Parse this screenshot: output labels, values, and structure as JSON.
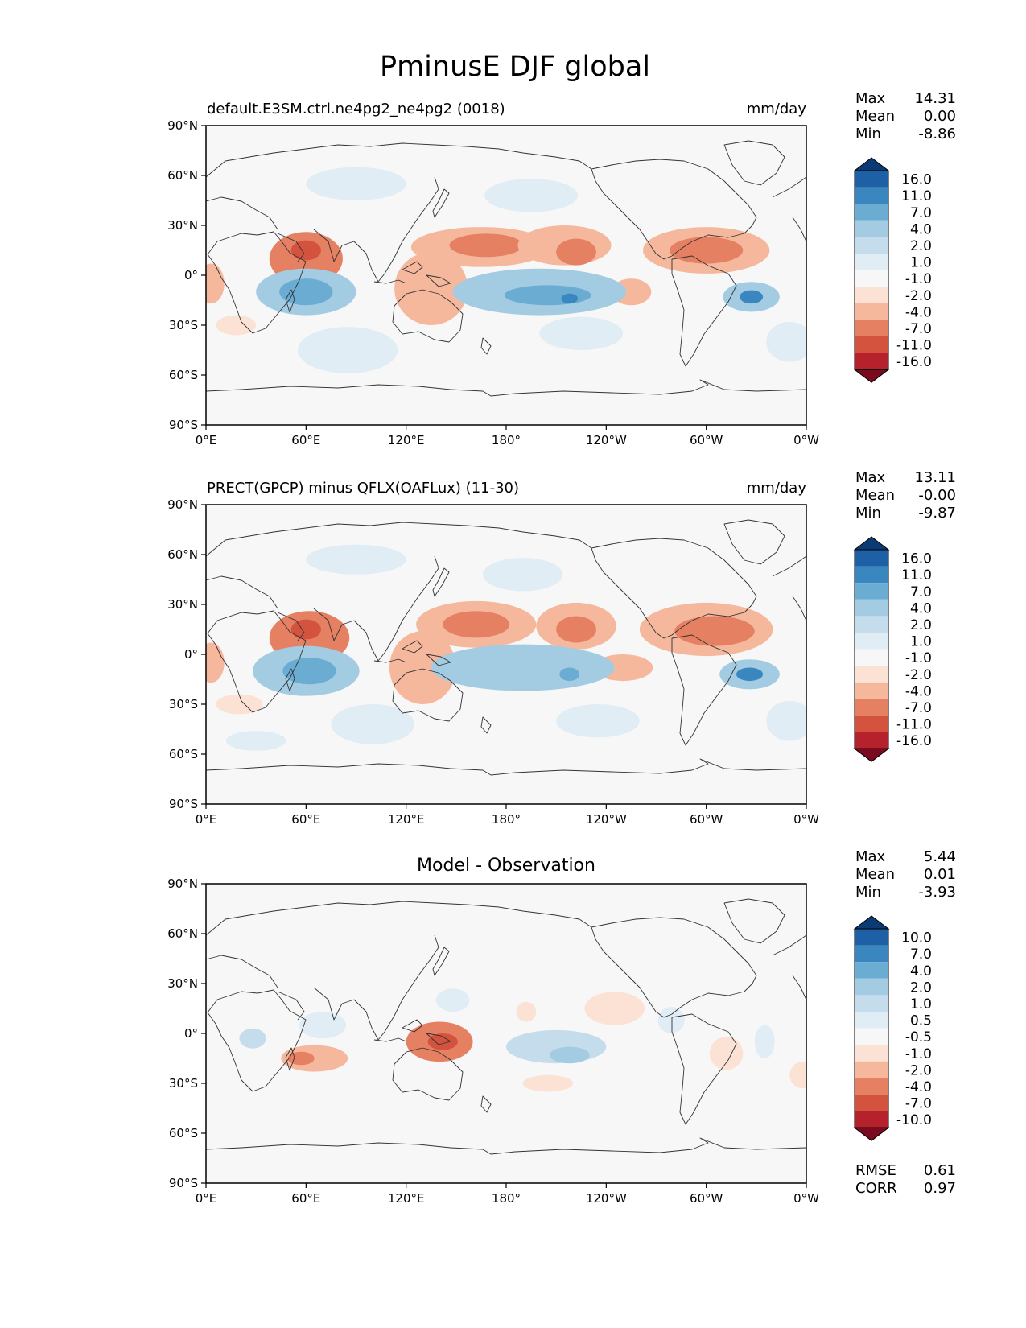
{
  "figure": {
    "title": "PminusE DJF global"
  },
  "colors": {
    "land_line": "#333333",
    "ocean_bg": "#f7f7f7",
    "blue_ramp": [
      "#f7f7f7",
      "#e0edf5",
      "#c4dceb",
      "#a3cce3",
      "#6aacd2",
      "#3a87bf",
      "#1e60a6",
      "#0b3b73"
    ],
    "red_ramp": [
      "#f7f7f7",
      "#fbe2d4",
      "#f6b89d",
      "#e68063",
      "#d3533f",
      "#b6222c",
      "#7a0a20"
    ]
  },
  "chart_data": [
    {
      "type": "heatmap",
      "name": "test",
      "title_left": "default.E3SM.ctrl.ne4pg2_ne4pg2 (0018)",
      "title_right": "mm/day",
      "stats": [
        {
          "label": "Max",
          "value": "14.31"
        },
        {
          "label": "Mean",
          "value": "0.00"
        },
        {
          "label": "Min",
          "value": "-8.86"
        }
      ],
      "colorbar": {
        "levels": [
          "16.0",
          "11.0",
          "7.0",
          "4.0",
          "2.0",
          "1.0",
          "-1.0",
          "-2.0",
          "-4.0",
          "-7.0",
          "-11.0",
          "-16.0"
        ]
      },
      "xticks": [
        "0°E",
        "60°E",
        "120°E",
        "180°",
        "120°W",
        "60°W",
        "0°W"
      ],
      "yticks": [
        "90°N",
        "60°N",
        "30°N",
        "0°",
        "30°S",
        "60°S",
        "90°S"
      ],
      "xlim": [
        0,
        360
      ],
      "ylim": [
        -90,
        90
      ],
      "blobs": [
        {
          "lon": 60,
          "lat": 10,
          "rx": 22,
          "ry": 16,
          "v": -4
        },
        {
          "lon": 60,
          "lat": 15,
          "rx": 9,
          "ry": 6,
          "v": -7
        },
        {
          "lon": 165,
          "lat": 17,
          "rx": 42,
          "ry": 12,
          "v": -2
        },
        {
          "lon": 168,
          "lat": 18,
          "rx": 22,
          "ry": 7,
          "v": -4
        },
        {
          "lon": 215,
          "lat": 18,
          "rx": 28,
          "ry": 12,
          "v": -2
        },
        {
          "lon": 222,
          "lat": 14,
          "rx": 12,
          "ry": 8,
          "v": -4
        },
        {
          "lon": 300,
          "lat": 15,
          "rx": 38,
          "ry": 14,
          "v": -2
        },
        {
          "lon": 300,
          "lat": 15,
          "rx": 22,
          "ry": 8,
          "v": -4
        },
        {
          "lon": 135,
          "lat": -8,
          "rx": 22,
          "ry": 22,
          "v": -2
        },
        {
          "lon": 255,
          "lat": -10,
          "rx": 12,
          "ry": 8,
          "v": -2
        },
        {
          "lon": 3,
          "lat": -5,
          "rx": 8,
          "ry": 12,
          "v": -2
        },
        {
          "lon": 18,
          "lat": -30,
          "rx": 12,
          "ry": 6,
          "v": -1
        },
        {
          "lon": 60,
          "lat": -10,
          "rx": 30,
          "ry": 14,
          "v": 4
        },
        {
          "lon": 60,
          "lat": -10,
          "rx": 16,
          "ry": 8,
          "v": 7
        },
        {
          "lon": 200,
          "lat": -10,
          "rx": 52,
          "ry": 14,
          "v": 4
        },
        {
          "lon": 205,
          "lat": -12,
          "rx": 26,
          "ry": 6,
          "v": 7
        },
        {
          "lon": 218,
          "lat": -14,
          "rx": 5,
          "ry": 3,
          "v": 11
        },
        {
          "lon": 327,
          "lat": -13,
          "rx": 17,
          "ry": 9,
          "v": 4
        },
        {
          "lon": 327,
          "lat": -13,
          "rx": 7,
          "ry": 4,
          "v": 11
        },
        {
          "lon": 90,
          "lat": 55,
          "rx": 30,
          "ry": 10,
          "v": 1
        },
        {
          "lon": 195,
          "lat": 48,
          "rx": 28,
          "ry": 10,
          "v": 1
        },
        {
          "lon": 85,
          "lat": -45,
          "rx": 30,
          "ry": 14,
          "v": 1
        },
        {
          "lon": 225,
          "lat": -35,
          "rx": 25,
          "ry": 10,
          "v": 1
        },
        {
          "lon": 350,
          "lat": -40,
          "rx": 14,
          "ry": 12,
          "v": 1
        }
      ]
    },
    {
      "type": "heatmap",
      "name": "reference",
      "title_left": "PRECT(GPCP) minus QFLX(OAFLux) (11-30)",
      "title_right": "mm/day",
      "stats": [
        {
          "label": "Max",
          "value": "13.11"
        },
        {
          "label": "Mean",
          "value": "-0.00"
        },
        {
          "label": "Min",
          "value": "-9.87"
        }
      ],
      "colorbar": {
        "levels": [
          "16.0",
          "11.0",
          "7.0",
          "4.0",
          "2.0",
          "1.0",
          "-1.0",
          "-2.0",
          "-4.0",
          "-7.0",
          "-11.0",
          "-16.0"
        ]
      },
      "xticks": [
        "0°E",
        "60°E",
        "120°E",
        "180°",
        "120°W",
        "60°W",
        "0°W"
      ],
      "yticks": [
        "90°N",
        "60°N",
        "30°N",
        "0°",
        "30°S",
        "60°S",
        "90°S"
      ],
      "xlim": [
        0,
        360
      ],
      "ylim": [
        -90,
        90
      ],
      "blobs": [
        {
          "lon": 62,
          "lat": 10,
          "rx": 24,
          "ry": 16,
          "v": -4
        },
        {
          "lon": 60,
          "lat": 15,
          "rx": 9,
          "ry": 6,
          "v": -7
        },
        {
          "lon": 162,
          "lat": 18,
          "rx": 36,
          "ry": 14,
          "v": -2
        },
        {
          "lon": 162,
          "lat": 18,
          "rx": 20,
          "ry": 8,
          "v": -4
        },
        {
          "lon": 222,
          "lat": 17,
          "rx": 24,
          "ry": 14,
          "v": -2
        },
        {
          "lon": 222,
          "lat": 15,
          "rx": 12,
          "ry": 8,
          "v": -4
        },
        {
          "lon": 300,
          "lat": 15,
          "rx": 40,
          "ry": 16,
          "v": -2
        },
        {
          "lon": 305,
          "lat": 14,
          "rx": 24,
          "ry": 9,
          "v": -4
        },
        {
          "lon": 130,
          "lat": -8,
          "rx": 20,
          "ry": 22,
          "v": -2
        },
        {
          "lon": 250,
          "lat": -8,
          "rx": 18,
          "ry": 8,
          "v": -2
        },
        {
          "lon": 3,
          "lat": -5,
          "rx": 8,
          "ry": 12,
          "v": -2
        },
        {
          "lon": 20,
          "lat": -30,
          "rx": 14,
          "ry": 6,
          "v": -1
        },
        {
          "lon": 60,
          "lat": -10,
          "rx": 32,
          "ry": 15,
          "v": 4
        },
        {
          "lon": 62,
          "lat": -10,
          "rx": 16,
          "ry": 8,
          "v": 7
        },
        {
          "lon": 190,
          "lat": -8,
          "rx": 55,
          "ry": 14,
          "v": 4
        },
        {
          "lon": 218,
          "lat": -12,
          "rx": 6,
          "ry": 4,
          "v": 7
        },
        {
          "lon": 326,
          "lat": -12,
          "rx": 18,
          "ry": 9,
          "v": 4
        },
        {
          "lon": 326,
          "lat": -12,
          "rx": 8,
          "ry": 4,
          "v": 11
        },
        {
          "lon": 90,
          "lat": 57,
          "rx": 30,
          "ry": 9,
          "v": 1
        },
        {
          "lon": 190,
          "lat": 48,
          "rx": 24,
          "ry": 10,
          "v": 1
        },
        {
          "lon": 100,
          "lat": -42,
          "rx": 25,
          "ry": 12,
          "v": 1
        },
        {
          "lon": 30,
          "lat": -52,
          "rx": 18,
          "ry": 6,
          "v": 1
        },
        {
          "lon": 235,
          "lat": -40,
          "rx": 25,
          "ry": 10,
          "v": 1
        },
        {
          "lon": 350,
          "lat": -40,
          "rx": 14,
          "ry": 12,
          "v": 1
        }
      ]
    },
    {
      "type": "heatmap",
      "name": "difference",
      "title_center": "Model - Observation",
      "stats": [
        {
          "label": "Max",
          "value": "5.44"
        },
        {
          "label": "Mean",
          "value": "0.01"
        },
        {
          "label": "Min",
          "value": "-3.93"
        }
      ],
      "extra_stats": [
        {
          "label": "RMSE",
          "value": "0.61"
        },
        {
          "label": "CORR",
          "value": "0.97"
        }
      ],
      "colorbar": {
        "levels": [
          "10.0",
          "7.0",
          "4.0",
          "2.0",
          "1.0",
          "0.5",
          "-0.5",
          "-1.0",
          "-2.0",
          "-4.0",
          "-7.0",
          "-10.0"
        ]
      },
      "xticks": [
        "0°E",
        "60°E",
        "120°E",
        "180°",
        "120°W",
        "60°W",
        "0°W"
      ],
      "yticks": [
        "90°N",
        "60°N",
        "30°N",
        "0°",
        "30°S",
        "60°S",
        "90°S"
      ],
      "xlim": [
        0,
        360
      ],
      "ylim": [
        -90,
        90
      ],
      "blobs": [
        {
          "lon": 140,
          "lat": -5,
          "rx": 20,
          "ry": 12,
          "v": -2
        },
        {
          "lon": 142,
          "lat": -5,
          "rx": 9,
          "ry": 5,
          "v": -4
        },
        {
          "lon": 65,
          "lat": -15,
          "rx": 20,
          "ry": 8,
          "v": -1
        },
        {
          "lon": 57,
          "lat": -15,
          "rx": 8,
          "ry": 4,
          "v": -2
        },
        {
          "lon": 245,
          "lat": 15,
          "rx": 18,
          "ry": 10,
          "v": -0.5
        },
        {
          "lon": 192,
          "lat": 13,
          "rx": 6,
          "ry": 6,
          "v": -0.5
        },
        {
          "lon": 205,
          "lat": -30,
          "rx": 15,
          "ry": 5,
          "v": -0.5
        },
        {
          "lon": 312,
          "lat": -12,
          "rx": 10,
          "ry": 10,
          "v": -0.5
        },
        {
          "lon": 358,
          "lat": -25,
          "rx": 8,
          "ry": 8,
          "v": -0.5
        },
        {
          "lon": 210,
          "lat": -8,
          "rx": 30,
          "ry": 10,
          "v": 1
        },
        {
          "lon": 218,
          "lat": -13,
          "rx": 12,
          "ry": 5,
          "v": 2
        },
        {
          "lon": 28,
          "lat": -3,
          "rx": 8,
          "ry": 6,
          "v": 1
        },
        {
          "lon": 148,
          "lat": 20,
          "rx": 10,
          "ry": 7,
          "v": 0.5
        },
        {
          "lon": 70,
          "lat": 5,
          "rx": 14,
          "ry": 8,
          "v": 0.5
        },
        {
          "lon": 279,
          "lat": 8,
          "rx": 8,
          "ry": 8,
          "v": 0.5
        },
        {
          "lon": 335,
          "lat": -5,
          "rx": 6,
          "ry": 10,
          "v": 0.5
        }
      ]
    }
  ]
}
